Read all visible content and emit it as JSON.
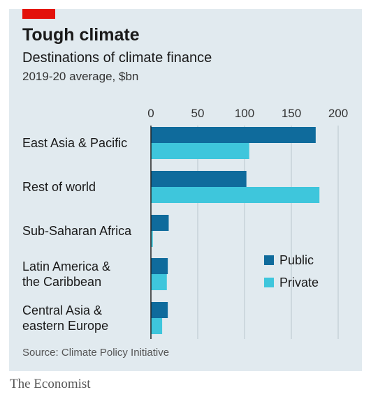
{
  "title": "Tough climate",
  "subtitle": "Destinations of climate finance",
  "unit_note": "2019-20 average, $bn",
  "source": "Source: Climate Policy Initiative",
  "brand": "The Economist",
  "colors": {
    "public": "#0f6b9c",
    "private": "#3ec6dc",
    "brand_red": "#e3120b",
    "background": "#e1eaef"
  },
  "chart_data": {
    "type": "bar",
    "orientation": "horizontal",
    "categories": [
      [
        "East Asia & Pacific"
      ],
      [
        "Rest of world"
      ],
      [
        "Sub-Saharan Africa"
      ],
      [
        "Latin America &",
        "the Caribbean"
      ],
      [
        "Central Asia &",
        "eastern Europe"
      ]
    ],
    "series": [
      {
        "name": "Public",
        "values": [
          176,
          102,
          19,
          18,
          18
        ]
      },
      {
        "name": "Private",
        "values": [
          105,
          180,
          2,
          17,
          12
        ]
      }
    ],
    "xlim": [
      0,
      200
    ],
    "xticks": [
      0,
      50,
      100,
      150,
      200
    ],
    "xtick_labels": [
      "0",
      "50",
      "100",
      "150",
      "200"
    ],
    "axis_position": "top",
    "grid": true,
    "legend_position": "right"
  }
}
